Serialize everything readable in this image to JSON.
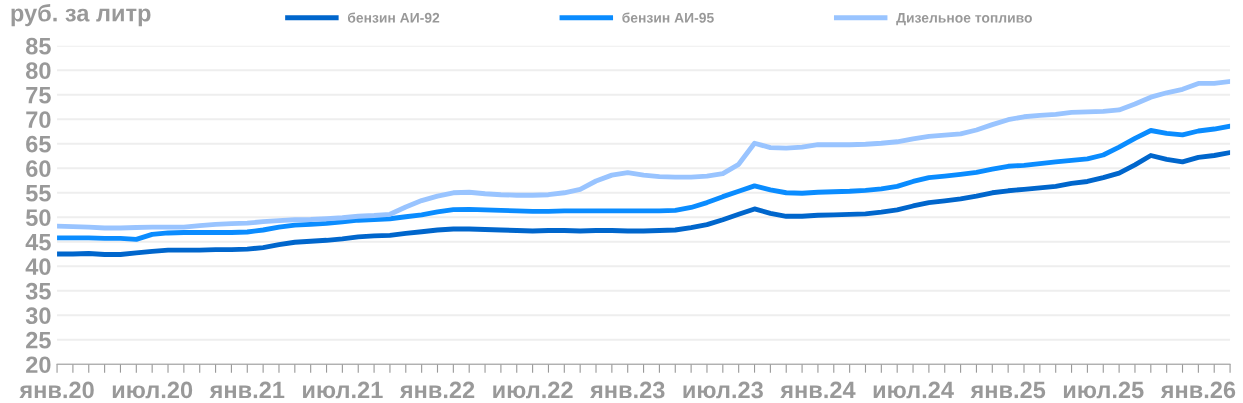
{
  "chart_data": {
    "type": "line",
    "ylabel": "руб. за литр",
    "categories": [
      "янв.20",
      null,
      null,
      null,
      null,
      null,
      "июл.20",
      null,
      null,
      null,
      null,
      null,
      "янв.21",
      null,
      null,
      null,
      null,
      null,
      "июл.21",
      null,
      null,
      null,
      null,
      null,
      "янв.22",
      null,
      null,
      null,
      null,
      null,
      "июл.22",
      null,
      null,
      null,
      null,
      null,
      "янв.23",
      null,
      null,
      null,
      null,
      null,
      "июл.23",
      null,
      null,
      null,
      null,
      null,
      "янв.24",
      null,
      null,
      null,
      null,
      null,
      "июл.24",
      null,
      null,
      null,
      null,
      null,
      "янв.25",
      null,
      null,
      null,
      null,
      null,
      "июл.25",
      null,
      null,
      null,
      null,
      null,
      "янв.26",
      null,
      null
    ],
    "series": [
      {
        "name": "бензин АИ-92",
        "color": "#0066cc",
        "values": [
          42.5,
          42.5,
          42.6,
          42.4,
          42.4,
          42.75,
          43.05,
          43.3,
          43.3,
          43.3,
          43.4,
          43.4,
          43.5,
          43.8,
          44.4,
          44.9,
          45.1,
          45.3,
          45.6,
          46.0,
          46.2,
          46.3,
          46.7,
          47.05,
          47.4,
          47.6,
          47.6,
          47.5,
          47.4,
          47.3,
          47.2,
          47.3,
          47.3,
          47.2,
          47.3,
          47.3,
          47.2,
          47.2,
          47.3,
          47.4,
          47.9,
          48.5,
          49.5,
          50.6,
          51.7,
          50.8,
          50.2,
          50.2,
          50.4,
          50.5,
          50.6,
          50.7,
          51.05,
          51.5,
          52.3,
          53.0,
          53.35,
          53.75,
          54.3,
          55.0,
          55.4,
          55.7,
          56.0,
          56.3,
          56.9,
          57.3,
          58.1,
          59.0,
          60.7,
          62.6,
          61.8,
          61.3,
          62.2,
          62.6,
          63.2
        ]
      },
      {
        "name": "бензин АИ-95",
        "color": "#0a8cff",
        "values": [
          45.8,
          45.8,
          45.8,
          45.7,
          45.7,
          45.5,
          46.5,
          46.8,
          46.9,
          46.9,
          46.9,
          46.9,
          47.0,
          47.4,
          48.0,
          48.4,
          48.55,
          48.75,
          49.05,
          49.4,
          49.55,
          49.7,
          50.1,
          50.5,
          51.1,
          51.55,
          51.6,
          51.5,
          51.4,
          51.3,
          51.2,
          51.2,
          51.3,
          51.3,
          51.3,
          51.3,
          51.3,
          51.3,
          51.3,
          51.4,
          52.0,
          53.0,
          54.2,
          55.3,
          56.4,
          55.6,
          55.0,
          54.9,
          55.1,
          55.2,
          55.3,
          55.5,
          55.8,
          56.3,
          57.3,
          58.1,
          58.4,
          58.75,
          59.15,
          59.8,
          60.4,
          60.6,
          60.95,
          61.3,
          61.6,
          61.9,
          62.7,
          64.3,
          66.1,
          67.7,
          67.1,
          66.8,
          67.6,
          68.0,
          68.6
        ]
      },
      {
        "name": "Дизельное топливо",
        "color": "#99c4ff",
        "values": [
          48.2,
          48.1,
          48.0,
          47.8,
          47.8,
          47.9,
          48.0,
          48.0,
          48.0,
          48.3,
          48.55,
          48.7,
          48.8,
          49.1,
          49.3,
          49.5,
          49.55,
          49.7,
          49.9,
          50.2,
          50.35,
          50.6,
          52.1,
          53.4,
          54.3,
          55.0,
          55.1,
          54.8,
          54.6,
          54.5,
          54.5,
          54.6,
          55.0,
          55.7,
          57.4,
          58.6,
          59.1,
          58.6,
          58.3,
          58.2,
          58.2,
          58.4,
          58.9,
          60.8,
          65.1,
          64.2,
          64.1,
          64.3,
          64.8,
          64.8,
          64.8,
          64.9,
          65.1,
          65.4,
          66.0,
          66.5,
          66.75,
          67.0,
          67.8,
          68.9,
          69.9,
          70.5,
          70.8,
          71.0,
          71.4,
          71.5,
          71.6,
          71.9,
          73.1,
          74.5,
          75.4,
          76.1,
          77.3,
          77.3,
          77.7
        ]
      }
    ],
    "ylim": [
      20,
      85
    ],
    "yticks": [
      20,
      25,
      30,
      35,
      40,
      45,
      50,
      55,
      60,
      65,
      70,
      75,
      80,
      85
    ],
    "grid": "y",
    "legend": "top",
    "marker": "none",
    "line_style": "solid"
  }
}
